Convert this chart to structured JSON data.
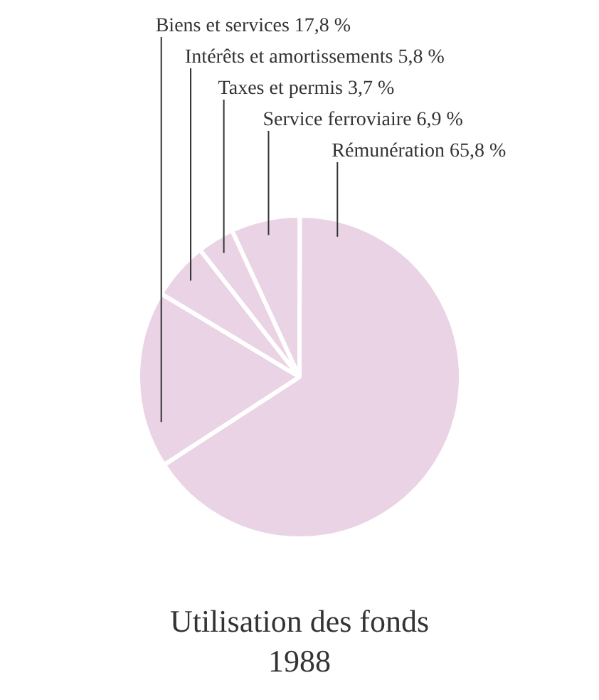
{
  "chart_data": {
    "type": "pie",
    "title": "Utilisation des fonds",
    "subtitle": "1988",
    "categories": [
      "Biens et services",
      "Intérêts et amortissements",
      "Taxes et permis",
      "Service ferroviaire",
      "Rémunération"
    ],
    "values": [
      17.8,
      5.8,
      3.7,
      6.9,
      65.8
    ],
    "colors": [
      "#ead3e4",
      "#ead3e4",
      "#ead3e4",
      "#ead3e4",
      "#ead3e4"
    ],
    "value_labels": [
      "17,8 %",
      "5,8 %",
      "3,7 %",
      "6,9 %",
      "65,8 %"
    ]
  }
}
